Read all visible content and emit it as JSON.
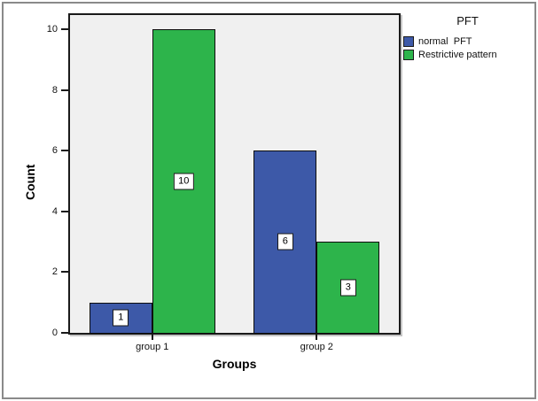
{
  "chart_data": {
    "type": "bar",
    "title": "",
    "xlabel": "Groups",
    "ylabel": "Count",
    "categories": [
      "group 1",
      "group 2"
    ],
    "series": [
      {
        "name": "normal  PFT",
        "color": "#3d59a8",
        "values": [
          1,
          6
        ]
      },
      {
        "name": "Restrictive pattern",
        "color": "#2db44b",
        "values": [
          10,
          3
        ]
      }
    ],
    "legend": {
      "title": "PFT",
      "position": "top-right"
    },
    "ylim": [
      0,
      10.5
    ],
    "yticks": [
      0,
      2,
      4,
      6,
      8,
      10
    ],
    "grid": false,
    "value_labels_shown": true,
    "plot_background": "#f0f0f0",
    "frame_color": "#1a1a1a"
  }
}
